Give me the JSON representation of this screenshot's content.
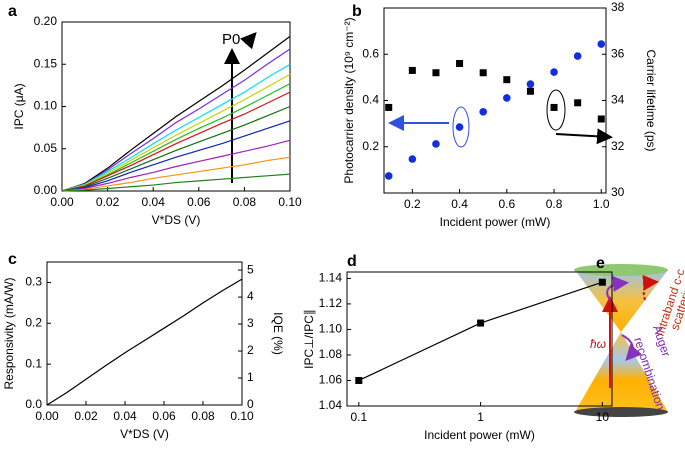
{
  "chart_data": [
    {
      "type": "line",
      "panel": "a",
      "ylabel": "IPC (μA)",
      "xlabel": "V*DS (V)",
      "annotation": "P0",
      "xlim": [
        0,
        0.1
      ],
      "ylim": [
        0,
        0.2
      ],
      "xticks": [
        {
          "value": 0,
          "label": "0.00"
        },
        {
          "value": 0.02,
          "label": "0.02"
        },
        {
          "value": 0.04,
          "label": "0.04"
        },
        {
          "value": 0.06,
          "label": "0.06"
        },
        {
          "value": 0.08,
          "label": "0.08"
        },
        {
          "value": 0.1,
          "label": "0.10"
        }
      ],
      "yticks": [
        {
          "value": 0,
          "label": "0.00"
        },
        0.05,
        {
          "value": 0.1,
          "label": "0.10"
        },
        0.15,
        {
          "value": 0.2,
          "label": "0.20"
        }
      ],
      "x": [
        0,
        0.01,
        0.02,
        0.03,
        0.04,
        0.05,
        0.06,
        0.07,
        0.08,
        0.09,
        0.1
      ],
      "series": [
        {
          "color": "#000000",
          "values": [
            0,
            0.009,
            0.027,
            0.048,
            0.068,
            0.088,
            0.106,
            0.124,
            0.143,
            0.163,
            0.183
          ]
        },
        {
          "color": "#7a2be8",
          "values": [
            0,
            0.008,
            0.025,
            0.044,
            0.062,
            0.081,
            0.097,
            0.114,
            0.131,
            0.15,
            0.168
          ]
        },
        {
          "color": "#00e0f0",
          "values": [
            0,
            0.008,
            0.023,
            0.039,
            0.056,
            0.072,
            0.087,
            0.102,
            0.117,
            0.134,
            0.15
          ]
        },
        {
          "color": "#c8d400",
          "values": [
            0,
            0.007,
            0.021,
            0.036,
            0.051,
            0.066,
            0.08,
            0.094,
            0.108,
            0.123,
            0.138
          ]
        },
        {
          "color": "#20c020",
          "values": [
            0,
            0.006,
            0.019,
            0.033,
            0.047,
            0.061,
            0.074,
            0.086,
            0.099,
            0.113,
            0.127
          ]
        },
        {
          "color": "#e01010",
          "values": [
            0,
            0.006,
            0.018,
            0.03,
            0.043,
            0.056,
            0.068,
            0.08,
            0.091,
            0.104,
            0.117
          ]
        },
        {
          "color": "#107010",
          "values": [
            0,
            0.005,
            0.015,
            0.026,
            0.037,
            0.048,
            0.058,
            0.068,
            0.078,
            0.089,
            0.1
          ]
        },
        {
          "color": "#1020c0",
          "values": [
            0,
            0.004,
            0.012,
            0.022,
            0.031,
            0.04,
            0.048,
            0.056,
            0.065,
            0.074,
            0.083
          ]
        },
        {
          "color": "#a020c0",
          "values": [
            0,
            0.003,
            0.009,
            0.016,
            0.022,
            0.029,
            0.035,
            0.041,
            0.047,
            0.053,
            0.06
          ]
        },
        {
          "color": "#ff9010",
          "values": [
            0,
            0.002,
            0.006,
            0.01,
            0.015,
            0.019,
            0.023,
            0.027,
            0.031,
            0.036,
            0.04
          ]
        },
        {
          "color": "#208020",
          "values": [
            0,
            0.001,
            0.003,
            0.005,
            0.007,
            0.01,
            0.012,
            0.014,
            0.016,
            0.018,
            0.02
          ]
        }
      ]
    },
    {
      "type": "scatter",
      "panel": "b",
      "ylabel": "Photocarrier density (10⁹ cm⁻²)",
      "y2label": "Carrier lifetime (ps)",
      "xlabel": "Incident power (mW)",
      "xlim": [
        0.08,
        1.02
      ],
      "ylim": [
        0,
        0.8
      ],
      "y2lim": [
        30,
        38
      ],
      "xticks": [
        0.2,
        0.4,
        0.6,
        0.8,
        {
          "value": 1,
          "label": "1.0"
        }
      ],
      "yticks": [
        0.2,
        0.4,
        0.6
      ],
      "y2ticks": [
        30,
        32,
        34,
        36,
        38
      ],
      "x": [
        0.1,
        0.2,
        0.3,
        0.4,
        0.5,
        0.6,
        0.7,
        0.8,
        0.9,
        1
      ],
      "series": [
        {
          "color": "#1030e0",
          "marker": "circle",
          "values": [
            0.074,
            0.147,
            0.212,
            0.285,
            0.351,
            0.411,
            0.471,
            0.523,
            0.592,
            0.644
          ]
        },
        {
          "color": "#000000",
          "marker": "square",
          "axis": "y2",
          "values": [
            33.7,
            35.3,
            35.2,
            35.6,
            35.2,
            34.9,
            34.4,
            33.7,
            33.9,
            33.2
          ]
        }
      ]
    },
    {
      "type": "line",
      "panel": "c",
      "ylabel": "Responsivity (mA/W)",
      "y2label": "IQE (%)",
      "xlabel": "V*DS (V)",
      "xlim": [
        0,
        0.1
      ],
      "ylim": [
        0,
        0.35
      ],
      "y2lim": [
        0,
        5.3
      ],
      "xticks": [
        {
          "value": 0,
          "label": "0.00"
        },
        {
          "value": 0.02,
          "label": "0.02"
        },
        {
          "value": 0.04,
          "label": "0.04"
        },
        {
          "value": 0.06,
          "label": "0.06"
        },
        {
          "value": 0.08,
          "label": "0.08"
        },
        {
          "value": 0.1,
          "label": "0.10"
        }
      ],
      "yticks": [
        {
          "value": 0,
          "label": "0.0"
        },
        0.1,
        0.2,
        0.3
      ],
      "y2ticks": [
        0,
        1,
        2,
        3,
        4,
        5
      ],
      "x": [
        0,
        0.01,
        0.02,
        0.03,
        0.04,
        0.05,
        0.06,
        0.07,
        0.08,
        0.09,
        0.1
      ],
      "series": [
        {
          "color": "#000000",
          "values": [
            0,
            0.03,
            0.063,
            0.096,
            0.128,
            0.158,
            0.188,
            0.218,
            0.25,
            0.28,
            0.308
          ]
        }
      ]
    },
    {
      "type": "line",
      "panel": "d",
      "ylabel": "IPC⊥/IPC∥",
      "xlabel": "Incident power (mW)",
      "log_x": true,
      "markers": "square",
      "xlim": [
        0.08,
        12
      ],
      "ylim": [
        1.04,
        1.145
      ],
      "xticks": [
        0.1,
        1,
        10
      ],
      "yticks": [
        1.04,
        1.06,
        1.08,
        {
          "value": 1.1,
          "label": "1.10"
        },
        1.12,
        1.14
      ],
      "x": [
        0.1,
        1,
        10
      ],
      "series": [
        {
          "color": "#000000",
          "values": [
            1.06,
            1.105,
            1.137
          ]
        }
      ]
    }
  ],
  "panel_e": {
    "label": "e",
    "intraband": "Intraband c-c",
    "scattering": "scattering",
    "photon": "ħω",
    "auger": "Auger",
    "recombination": "recombination"
  }
}
